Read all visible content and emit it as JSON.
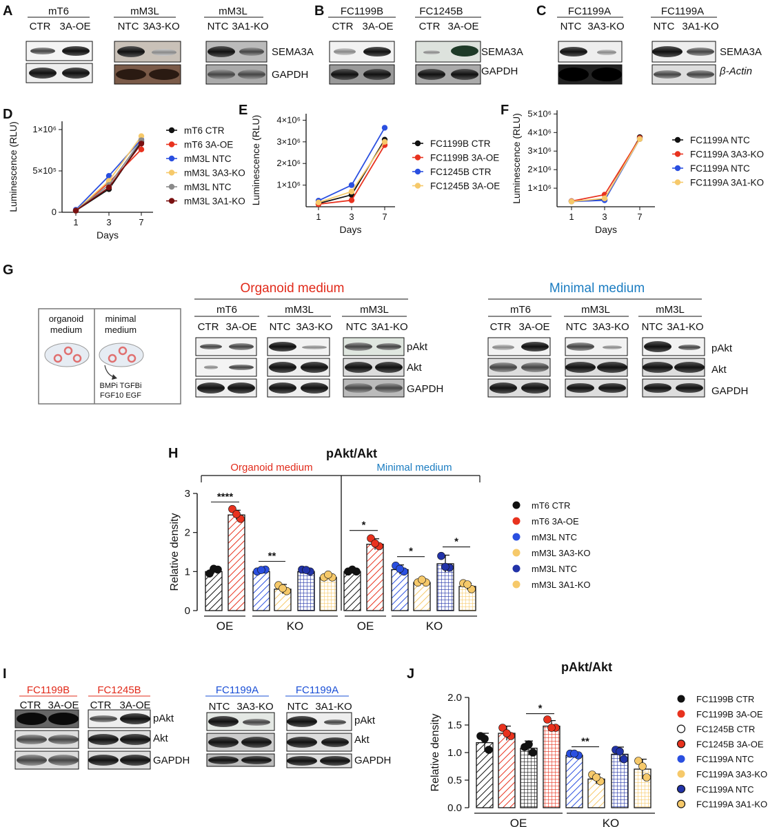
{
  "colors": {
    "black": "#111111",
    "red": "#e8321e",
    "blue": "#2a4fe0",
    "yellow": "#f6c96a",
    "gray": "#8a8a8a",
    "darkred": "#7a1010",
    "darkblue": "#2233a8",
    "title_red": "#e12a1a",
    "title_blue": "#1a7cc1"
  },
  "panels": {
    "A": "A",
    "B": "B",
    "C": "C",
    "D": "D",
    "E": "E",
    "F": "F",
    "G": "G",
    "H": "H",
    "I": "I",
    "J": "J"
  },
  "blotA": {
    "mt6": "mT6",
    "mt6_l1": "CTR",
    "mt6_l2": "3A-OE",
    "m3a": "mM3L",
    "m3a_l1": "NTC",
    "m3a_l2": "3A3-KO",
    "m1a": "mM3L",
    "m1a_l1": "NTC",
    "m1a_l2": "3A1-KO",
    "row1": "SEMA3A",
    "row2": "GAPDH"
  },
  "blotB": {
    "g1": "FC1199B",
    "g1_l1": "CTR",
    "g1_l2": "3A-OE",
    "g2": "FC1245B",
    "g2_l1": "CTR",
    "g2_l2": "3A-OE",
    "row1": "SEMA3A",
    "row2": "GAPDH"
  },
  "blotC": {
    "g1": "FC1199A",
    "g1_l1": "NTC",
    "g1_l2": "3A3-KO",
    "g2": "FC1199A",
    "g2_l1": "NTC",
    "g2_l2": "3A1-KO",
    "row1": "SEMA3A",
    "row2": "β-Actin"
  },
  "blotG": {
    "org_title": "Organoid medium",
    "min_title": "Minimal medium",
    "o1": "mT6",
    "o1_l1": "CTR",
    "o1_l2": "3A-OE",
    "o2": "mM3L",
    "o2_l1": "NTC",
    "o2_l2": "3A3-KO",
    "o3": "mM3L",
    "o3_l1": "NTC",
    "o3_l2": "3A1-KO",
    "m1": "mT6",
    "m1_l1": "CTR",
    "m1_l2": "3A-OE",
    "m2": "mM3L",
    "m2_l1": "NTC",
    "m2_l2": "3A3-KO",
    "m3": "mM3L",
    "m3_l1": "NTC",
    "m3_l2": "3A1-KO",
    "r1": "pAkt",
    "r2": "Akt",
    "r3": "GAPDH",
    "dish_left_1": "organoid",
    "dish_left_2": "medium",
    "dish_right_1": "minimal",
    "dish_right_2": "medium",
    "inhib_1": "BMPi TGFBi",
    "inhib_2": "FGF10 EGF"
  },
  "blotI": {
    "g1": "FC1199B",
    "g1_l1": "CTR",
    "g1_l2": "3A-OE",
    "g2": "FC1245B",
    "g2_l1": "CTR",
    "g2_l2": "3A-OE",
    "g3": "FC1199A",
    "g3_l1": "NTC",
    "g3_l2": "3A3-KO",
    "g4": "FC1199A",
    "g4_l1": "NTC",
    "g4_l2": "3A1-KO",
    "r1": "pAkt",
    "r2": "Akt",
    "r3": "GAPDH"
  },
  "chart_data": [
    {
      "panel": "D",
      "type": "line",
      "x": [
        1,
        3,
        7
      ],
      "x_ticks": [
        "1",
        "3",
        "7"
      ],
      "xlabel": "Days",
      "ylabel": "Luminescence (RLU)",
      "y_ticks": [
        "0",
        "5×10⁵",
        "1×10⁶"
      ],
      "ylim": [
        0,
        1100000
      ],
      "series": [
        {
          "name": "mT6 CTR",
          "color": "#111111",
          "values": [
            20000,
            280000,
            850000
          ]
        },
        {
          "name": "mT6 3A-OE",
          "color": "#e8321e",
          "values": [
            20000,
            360000,
            760000
          ]
        },
        {
          "name": "mM3L NTC",
          "color": "#2a4fe0",
          "values": [
            30000,
            440000,
            880000
          ]
        },
        {
          "name": "mM3L 3A3-KO",
          "color": "#f6c96a",
          "values": [
            20000,
            380000,
            920000
          ]
        },
        {
          "name": "mM3L NTC",
          "color": "#8a8a8a",
          "values": [
            20000,
            330000,
            870000
          ]
        },
        {
          "name": "mM3L 3A1-KO",
          "color": "#7a1010",
          "values": [
            20000,
            300000,
            830000
          ]
        }
      ]
    },
    {
      "panel": "E",
      "type": "line",
      "x": [
        1,
        3,
        7
      ],
      "x_ticks": [
        "1",
        "3",
        "7"
      ],
      "xlabel": "Days",
      "ylabel": "Luminescence (RLU)",
      "y_ticks": [
        "1×10⁶",
        "2×10⁶",
        "3×10⁶",
        "4×10⁶"
      ],
      "ylim": [
        0,
        4300000
      ],
      "series": [
        {
          "name": "FC1199B CTR",
          "color": "#111111",
          "values": [
            150000,
            550000,
            3100000
          ]
        },
        {
          "name": "FC1199B 3A-OE",
          "color": "#e8321e",
          "values": [
            120000,
            300000,
            2850000
          ]
        },
        {
          "name": "FC1245B CTR",
          "color": "#2a4fe0",
          "values": [
            280000,
            1000000,
            3650000
          ]
        },
        {
          "name": "FC1245B 3A-OE",
          "color": "#f6c96a",
          "values": [
            200000,
            700000,
            3000000
          ]
        }
      ]
    },
    {
      "panel": "F",
      "type": "line",
      "x": [
        1,
        3,
        7
      ],
      "x_ticks": [
        "1",
        "3",
        "7"
      ],
      "xlabel": "Days",
      "ylabel": "Luminescence (RLU)",
      "y_ticks": [
        "1×10⁶",
        "2×10⁶",
        "3×10⁶",
        "4×10⁶",
        "5×10⁶"
      ],
      "ylim": [
        0,
        5200000
      ],
      "series": [
        {
          "name": "FC1199A NTC",
          "color": "#111111",
          "values": [
            300000,
            400000,
            3750000
          ]
        },
        {
          "name": "FC1199A 3A3-KO",
          "color": "#e8321e",
          "values": [
            300000,
            650000,
            3700000
          ]
        },
        {
          "name": "FC1199A NTC",
          "color": "#2a4fe0",
          "values": [
            280000,
            350000,
            3650000
          ]
        },
        {
          "name": "FC1199A 3A1-KO",
          "color": "#f6c96a",
          "values": [
            280000,
            450000,
            3650000
          ]
        }
      ]
    },
    {
      "panel": "H",
      "type": "bar",
      "title": "pAkt/Akt",
      "ylabel": "Relative density",
      "ylim": [
        0,
        3
      ],
      "y_ticks": [
        "0",
        "1",
        "2",
        "3"
      ],
      "section_labels": [
        "Organoid medium",
        "Minimal medium"
      ],
      "group_labels": [
        "OE",
        "KO",
        "OE",
        "KO"
      ],
      "bars": [
        {
          "name": "mT6 CTR",
          "color": "#111111",
          "pattern": "diag",
          "value": 1.0,
          "err": 0.06,
          "points": [
            0.95,
            1.05,
            1.0
          ]
        },
        {
          "name": "mT6 3A-OE",
          "color": "#e8321e",
          "pattern": "diag",
          "value": 2.45,
          "err": 0.12,
          "points": [
            2.6,
            2.35,
            2.4
          ]
        },
        {
          "name": "mM3L NTC",
          "color": "#2a4fe0",
          "pattern": "diag",
          "value": 1.0,
          "err": 0.05,
          "points": [
            1.0,
            1.05,
            0.97
          ]
        },
        {
          "name": "mM3L 3A3-KO",
          "color": "#f6c96a",
          "pattern": "diag",
          "value": 0.55,
          "err": 0.12,
          "points": [
            0.65,
            0.5,
            0.5
          ]
        },
        {
          "name": "mM3L NTC",
          "color": "#2233a8",
          "pattern": "grid",
          "value": 1.0,
          "err": 0.04,
          "points": [
            1.05,
            1.0,
            0.97
          ]
        },
        {
          "name": "mM3L 3A1-KO",
          "color": "#f6c96a",
          "pattern": "grid",
          "value": 0.85,
          "err": 0.03,
          "points": [
            0.85,
            0.85,
            0.85
          ]
        },
        {
          "name": "mT6 CTR",
          "color": "#111111",
          "pattern": "diag",
          "value": 1.0,
          "err": 0.03,
          "points": [
            1.0,
            1.0,
            0.98
          ]
        },
        {
          "name": "mT6 3A-OE",
          "color": "#e8321e",
          "pattern": "diag",
          "value": 1.7,
          "err": 0.14,
          "points": [
            1.85,
            1.65,
            1.65
          ]
        },
        {
          "name": "mM3L NTC",
          "color": "#2a4fe0",
          "pattern": "diag",
          "value": 1.05,
          "err": 0.12,
          "points": [
            1.15,
            1.0,
            1.0
          ]
        },
        {
          "name": "mM3L 3A3-KO",
          "color": "#f6c96a",
          "pattern": "diag",
          "value": 0.72,
          "err": 0.02,
          "points": [
            0.72,
            0.72,
            0.72
          ]
        },
        {
          "name": "mM3L NTC",
          "color": "#2233a8",
          "pattern": "grid",
          "value": 1.2,
          "err": 0.22,
          "points": [
            1.4,
            1.1,
            1.05
          ]
        },
        {
          "name": "mM3L 3A1-KO",
          "color": "#f6c96a",
          "pattern": "grid",
          "value": 0.62,
          "err": 0.08,
          "points": [
            0.7,
            0.55,
            0.6
          ]
        }
      ],
      "significance": [
        {
          "from": 0,
          "to": 1,
          "label": "****"
        },
        {
          "from": 2,
          "to": 3,
          "label": "**"
        },
        {
          "from": 6,
          "to": 7,
          "label": "*"
        },
        {
          "from": 8,
          "to": 9,
          "label": "*"
        },
        {
          "from": 10,
          "to": 11,
          "label": "*"
        }
      ],
      "legend": [
        {
          "name": "mT6 CTR",
          "color": "#111111"
        },
        {
          "name": "mT6 3A-OE",
          "color": "#e8321e"
        },
        {
          "name": "mM3L NTC",
          "color": "#2a4fe0"
        },
        {
          "name": "mM3L 3A3-KO",
          "color": "#f6c96a"
        },
        {
          "name": "mM3L NTC",
          "color": "#2233a8"
        },
        {
          "name": "mM3L 3A1-KO",
          "color": "#f6c96a"
        }
      ]
    },
    {
      "panel": "J",
      "type": "bar",
      "title": "pAkt/Akt",
      "ylabel": "Relative density",
      "ylim": [
        0,
        2.0
      ],
      "y_ticks": [
        "0.0",
        "0.5",
        "1.0",
        "1.5",
        "2.0"
      ],
      "group_labels": [
        "OE",
        "KO"
      ],
      "bars": [
        {
          "name": "FC1199B CTR",
          "color": "#111111",
          "pattern": "diag",
          "value": 1.18,
          "err": 0.17,
          "points": [
            1.3,
            1.05,
            1.2
          ]
        },
        {
          "name": "FC1199B 3A-OE",
          "color": "#e8321e",
          "pattern": "diag",
          "value": 1.35,
          "err": 0.13,
          "points": [
            1.45,
            1.3,
            1.3
          ]
        },
        {
          "name": "FC1245B CTR",
          "color": "#111111",
          "pattern": "grid",
          "value": 1.08,
          "err": 0.13,
          "points": [
            1.1,
            1.0,
            1.1
          ]
        },
        {
          "name": "FC1245B 3A-OE",
          "color": "#e8321e",
          "pattern": "grid",
          "value": 1.48,
          "err": 0.1,
          "points": [
            1.6,
            1.45,
            1.4
          ]
        },
        {
          "name": "FC1199A NTC",
          "color": "#2a4fe0",
          "pattern": "diag",
          "value": 0.95,
          "err": 0.03,
          "points": [
            0.98,
            0.95,
            0.93
          ]
        },
        {
          "name": "FC1199A 3A3-KO",
          "color": "#f6c96a",
          "pattern": "diag",
          "value": 0.52,
          "err": 0.09,
          "points": [
            0.6,
            0.48,
            0.5
          ]
        },
        {
          "name": "FC1199A NTC",
          "color": "#2233a8",
          "pattern": "grid",
          "value": 0.97,
          "err": 0.13,
          "points": [
            1.05,
            0.88,
            0.97
          ]
        },
        {
          "name": "FC1199A 3A1-KO",
          "color": "#f6c96a",
          "pattern": "grid",
          "value": 0.7,
          "err": 0.18,
          "points": [
            0.85,
            0.55,
            0.7
          ]
        }
      ],
      "significance": [
        {
          "from": 2,
          "to": 3,
          "label": "*"
        },
        {
          "from": 4,
          "to": 5,
          "label": "**"
        }
      ],
      "legend": [
        {
          "name": "FC1199B CTR",
          "color": "#111111",
          "open": false
        },
        {
          "name": "FC1199B 3A-OE",
          "color": "#e8321e",
          "open": false
        },
        {
          "name": "FC1245B CTR",
          "color": "#111111",
          "open": true
        },
        {
          "name": "FC1245B 3A-OE",
          "color": "#e8321e",
          "open": false,
          "ring": true
        },
        {
          "name": "FC1199A NTC",
          "color": "#2a4fe0",
          "open": false
        },
        {
          "name": "FC1199A 3A3-KO",
          "color": "#f6c96a",
          "open": false
        },
        {
          "name": "FC1199A NTC",
          "color": "#2233a8",
          "open": false,
          "ring": true
        },
        {
          "name": "FC1199A 3A1-KO",
          "color": "#f6c96a",
          "open": false,
          "ring": true
        }
      ]
    }
  ]
}
